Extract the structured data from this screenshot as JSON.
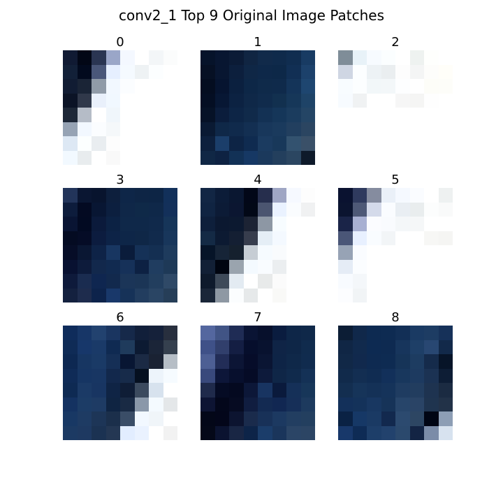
{
  "title": "conv2_1 Top 9 Original Image Patches",
  "panels": [
    {
      "label": "0",
      "grid": [
        [
          "#101a33",
          "#020716",
          "#2a3552",
          "#9aa6c8",
          "#f4f8ff",
          "#ffffff",
          "#f3f6f8",
          "#fbfcfc"
        ],
        [
          "#122038",
          "#020a1e",
          "#4a5779",
          "#e6efff",
          "#f5faff",
          "#eef2f4",
          "#fcfeff",
          "#ffffff"
        ],
        [
          "#111c33",
          "#1a2436",
          "#909ba8",
          "#f2f8ff",
          "#fbfdff",
          "#ffffff",
          "#ffffff",
          "#ffffff"
        ],
        [
          "#0b1326",
          "#30384a",
          "#e9f0fb",
          "#f1f8ff",
          "#ffffff",
          "#ffffff",
          "#ffffff",
          "#ffffff"
        ],
        [
          "#1d2737",
          "#b5bcc7",
          "#ffffff",
          "#f0f6fb",
          "#ffffff",
          "#ffffff",
          "#ffffff",
          "#ffffff"
        ],
        [
          "#96a3b4",
          "#f2f8ff",
          "#fbfdff",
          "#f5f8fa",
          "#ffffff",
          "#ffffff",
          "#ffffff",
          "#ffffff"
        ],
        [
          "#dde8f4",
          "#fcffff",
          "#e9edf0",
          "#fdfdfd",
          "#ffffff",
          "#ffffff",
          "#ffffff",
          "#ffffff"
        ],
        [
          "#f2f9ff",
          "#e8ecee",
          "#ffffff",
          "#f9f9f9",
          "#ffffff",
          "#ffffff",
          "#ffffff",
          "#ffffff"
        ]
      ]
    },
    {
      "label": "1",
      "grid": [
        [
          "#06132a",
          "#081631",
          "#0b1b36",
          "#102542",
          "#112a4a",
          "#0f2a4b",
          "#102d50",
          "#183b63"
        ],
        [
          "#061024",
          "#081631",
          "#0c1f3d",
          "#0f2746",
          "#0e2849",
          "#0d2848",
          "#112f54",
          "#1c416b"
        ],
        [
          "#040d20",
          "#061430",
          "#0b203f",
          "#0d2747",
          "#0f2a4a",
          "#0f2a4b",
          "#143459",
          "#1e4670"
        ],
        [
          "#040e23",
          "#071734",
          "#0c2242",
          "#0f2848",
          "#102b4c",
          "#12304f",
          "#163759",
          "#1e4367"
        ],
        [
          "#061227",
          "#0b1d3c",
          "#0d2546",
          "#102a4a",
          "#133154",
          "#153659",
          "#1b3c5e",
          "#244565"
        ],
        [
          "#0a1a33",
          "#0f2848",
          "#102a4c",
          "#132f52",
          "#18375b",
          "#1a3a5d",
          "#223f5f",
          "#2b4561"
        ],
        [
          "#0d203d",
          "#1b3e6a",
          "#0d2445",
          "#0f2b50",
          "#1b3b60",
          "#18385a",
          "#33526f",
          "#3a5068"
        ],
        [
          "#102745",
          "#0e2242",
          "#123156",
          "#163864",
          "#1b395c",
          "#233f5d",
          "#2b4661",
          "#0e1a2a"
        ]
      ]
    },
    {
      "label": "2",
      "grid": [
        [
          "#7f8d98",
          "#e8f2f8",
          "#f7fbff",
          "#fbfeff",
          "#ffffff",
          "#eef2f0",
          "#fefffd",
          "#ffffff"
        ],
        [
          "#cfd6e3",
          "#fcfeff",
          "#edf2f5",
          "#eaeef0",
          "#fdfdfd",
          "#f4f5f5",
          "#fdfdfb",
          "#fffef9"
        ],
        [
          "#f8fcff",
          "#fcfeff",
          "#f2f7f9",
          "#f3f7f9",
          "#fdfeff",
          "#ffffff",
          "#fdfdf8",
          "#fdfdf9"
        ],
        [
          "#f7fbff",
          "#f0f2f3",
          "#ffffff",
          "#ffffff",
          "#f6f6f6",
          "#f5f5f4",
          "#fefefe",
          "#ffffff"
        ],
        [
          "#ffffff",
          "#ffffff",
          "#ffffff",
          "#ffffff",
          "#ffffff",
          "#ffffff",
          "#ffffff",
          "#ffffff"
        ],
        [
          "#ffffff",
          "#ffffff",
          "#ffffff",
          "#ffffff",
          "#ffffff",
          "#ffffff",
          "#ffffff",
          "#ffffff"
        ],
        [
          "#ffffff",
          "#ffffff",
          "#ffffff",
          "#ffffff",
          "#ffffff",
          "#ffffff",
          "#ffffff",
          "#ffffff"
        ],
        [
          "#ffffff",
          "#ffffff",
          "#ffffff",
          "#ffffff",
          "#ffffff",
          "#ffffff",
          "#ffffff",
          "#ffffff"
        ]
      ]
    },
    {
      "label": "3",
      "grid": [
        [
          "#22345a",
          "#0a1632",
          "#08142e",
          "#0d1f3d",
          "#0e2648",
          "#0e2545",
          "#0d2545",
          "#12305a"
        ],
        [
          "#0d1c3c",
          "#030a22",
          "#081633",
          "#0c1f3f",
          "#0f2748",
          "#0f2948",
          "#0f2849",
          "#13305a"
        ],
        [
          "#091433",
          "#020a22",
          "#0b1a3b",
          "#0c2244",
          "#0f2849",
          "#0f2849",
          "#10294b",
          "#163559"
        ],
        [
          "#040b22",
          "#050c26",
          "#0c1c3f",
          "#0d2347",
          "#0e2648",
          "#0f2747",
          "#112a4c",
          "#18365b"
        ],
        [
          "#060d27",
          "#0a1733",
          "#0e2347",
          "#183661",
          "#0a1c3b",
          "#153157",
          "#142f52",
          "#1e3b5d"
        ],
        [
          "#081131",
          "#0d1b3b",
          "#12284c",
          "#112a50",
          "#163159",
          "#0d2143",
          "#203d60",
          "#1e3957"
        ],
        [
          "#0e1a3b",
          "#1a2c50",
          "#0f2650",
          "#12294d",
          "#1b3558",
          "#1b3556",
          "#223e5e",
          "#2f4967"
        ],
        [
          "#14213f",
          "#1e2c4d",
          "#0d234b",
          "#19386a",
          "#163258",
          "#223d5f",
          "#2a4564",
          "#263e58"
        ]
      ]
    },
    {
      "label": "4",
      "grid": [
        [
          "#122644",
          "#0c1c38",
          "#0a1731",
          "#020718",
          "#262e4d",
          "#9fa6c4",
          "#f6f9ff",
          "#fdfdfd"
        ],
        [
          "#102442",
          "#0c1b36",
          "#0b1631",
          "#020817",
          "#4b5570",
          "#eaf2ff",
          "#fafcfe",
          "#f0f1f2"
        ],
        [
          "#0e1f3b",
          "#0b1830",
          "#0c1930",
          "#1c2334",
          "#8d97a4",
          "#f7fcff",
          "#ffffff",
          "#ffffff"
        ],
        [
          "#142a45",
          "#0c1a32",
          "#141f33",
          "#373d4d",
          "#e5eef6",
          "#f4f9ff",
          "#ffffff",
          "#ffffff"
        ],
        [
          "#061428",
          "#162437",
          "#15202e",
          "#c6cdd4",
          "#f6fbff",
          "#f9fbfd",
          "#ffffff",
          "#ffffff"
        ],
        [
          "#122036",
          "#000510",
          "#9aa4ae",
          "#f4faff",
          "#f9fcff",
          "#ebeef0",
          "#ffffff",
          "#ffffff"
        ],
        [
          "#0e1a2c",
          "#3e4a59",
          "#e3ebf2",
          "#ffffff",
          "#e8eaea",
          "#fbfbfb",
          "#ffffff",
          "#ffffff"
        ],
        [
          "#1a2638",
          "#8e98a3",
          "#fbfdfe",
          "#e6e9ea",
          "#ffffff",
          "#f9f9f7",
          "#ffffff",
          "#ffffff"
        ]
      ]
    },
    {
      "label": "5",
      "grid": [
        [
          "#0a1230",
          "#2f3a5e",
          "#858c9f",
          "#eaf0f8",
          "#f5f9ff",
          "#fafcff",
          "#ffffff",
          "#eef1f1"
        ],
        [
          "#0b1430",
          "#4e5977",
          "#d4daea",
          "#fafcff",
          "#e9eef3",
          "#e9edee",
          "#fcfdfd",
          "#f9fafa"
        ],
        [
          "#1a2448",
          "#a8b0d2",
          "#fbfcff",
          "#f9fbfe",
          "#f4f7f9",
          "#f5f7f8",
          "#ffffff",
          "#ffffff"
        ],
        [
          "#4a5677",
          "#e8f0ff",
          "#f9fcff",
          "#f2f5f7",
          "#ffffff",
          "#ffffff",
          "#f7f7f5",
          "#f5f5f3"
        ],
        [
          "#97a3b5",
          "#fafcff",
          "#ffffff",
          "#ffffff",
          "#ffffff",
          "#ffffff",
          "#ffffff",
          "#ffffff"
        ],
        [
          "#e5ecf6",
          "#fbfdff",
          "#ffffff",
          "#ffffff",
          "#ffffff",
          "#ffffff",
          "#ffffff",
          "#ffffff"
        ],
        [
          "#f8fbff",
          "#f4f7fa",
          "#ffffff",
          "#ffffff",
          "#ffffff",
          "#ffffff",
          "#ffffff",
          "#ffffff"
        ],
        [
          "#fcfdff",
          "#f1f4f6",
          "#ffffff",
          "#ffffff",
          "#ffffff",
          "#ffffff",
          "#ffffff",
          "#ffffff"
        ]
      ]
    },
    {
      "label": "6",
      "grid": [
        [
          "#0f2c5b",
          "#173667",
          "#22426f",
          "#1a3560",
          "#16294a",
          "#111f3a",
          "#15213a",
          "#282f3e"
        ],
        [
          "#0f2b56",
          "#17376a",
          "#1a3a68",
          "#0f2a52",
          "#1f3b5c",
          "#0c1a32",
          "#1b2538",
          "#35404e"
        ],
        [
          "#0d2852",
          "#173662",
          "#1a3a66",
          "#152f56",
          "#081633",
          "#1b2a44",
          "#1a2233",
          "#b6bec6"
        ],
        [
          "#0f2b57",
          "#163563",
          "#183663",
          "#12284c",
          "#172b4a",
          "#051020",
          "#edf4fb",
          "#f6fbff"
        ],
        [
          "#0e2a53",
          "#1b3a66",
          "#183562",
          "#0f2445",
          "#0f1d36",
          "#3b4a5e",
          "#d7e2ee",
          "#ffffff"
        ],
        [
          "#143261",
          "#1c3c66",
          "#1e3b64",
          "#0f2442",
          "#192a44",
          "#8a98a9",
          "#f4faff",
          "#e4e7e9"
        ],
        [
          "#183864",
          "#1e3b63",
          "#1d3557",
          "#1b2f4b",
          "#3a4d67",
          "#f2f8ff",
          "#f0f5f9",
          "#ffffff"
        ],
        [
          "#1c3a63",
          "#1e3961",
          "#1b3252",
          "#243753",
          "#e2edff",
          "#eaf2ff",
          "#ffffff",
          "#f2f2f2"
        ]
      ]
    },
    {
      "label": "7",
      "grid": [
        [
          "#54679f",
          "#415485",
          "#1f2c55",
          "#0a1434",
          "#07102c",
          "#0a1c3f",
          "#0e2648",
          "#0f2849"
        ],
        [
          "#3f5188",
          "#313f6c",
          "#141e43",
          "#060e2c",
          "#08122f",
          "#0f2446",
          "#0e2647",
          "#102b4d"
        ],
        [
          "#4d5f94",
          "#222d57",
          "#0c1535",
          "#060c29",
          "#0a1533",
          "#0e2446",
          "#0f2849",
          "#102b4e"
        ],
        [
          "#39497c",
          "#0d1639",
          "#070f2d",
          "#050b26",
          "#0d1a3b",
          "#0f2647",
          "#102a4c",
          "#143156"
        ],
        [
          "#1f2a4b",
          "#050b24",
          "#040920",
          "#0c1738",
          "#183461",
          "#0a1a3c",
          "#153058",
          "#173659"
        ],
        [
          "#0d1433",
          "#03071b",
          "#060b22",
          "#101d40",
          "#132a52",
          "#112752",
          "#162f58",
          "#1d3a5e"
        ],
        [
          "#030718",
          "#03061a",
          "#0c1430",
          "#1a2b4c",
          "#183158",
          "#1c3961",
          "#223e61",
          "#233f5f"
        ],
        [
          "#040818",
          "#0b1330",
          "#192644",
          "#0d2448",
          "#1b3d6a",
          "#1a355b",
          "#2b4566",
          "#2c4564"
        ]
      ]
    },
    {
      "label": "8",
      "grid": [
        [
          "#0c1d35",
          "#10284a",
          "#0d2a51",
          "#0e2b52",
          "#122f56",
          "#1a3a63",
          "#1d3c63",
          "#163159"
        ],
        [
          "#102645",
          "#112a4d",
          "#0d2a52",
          "#0e2a51",
          "#17355c",
          "#1e3f67",
          "#284772",
          "#12294a"
        ],
        [
          "#112847",
          "#11294d",
          "#0e2a51",
          "#0e2b52",
          "#163458",
          "#1d3c61",
          "#152b4b",
          "#071428"
        ],
        [
          "#112a4b",
          "#132e52",
          "#102c52",
          "#12305a",
          "#18375d",
          "#1d3a60",
          "#1b3253",
          "#0d1d35"
        ],
        [
          "#132e50",
          "#163459",
          "#143157",
          "#15335a",
          "#1f3c61",
          "#223d5f",
          "#1e3350",
          "#1b2b42"
        ],
        [
          "#13305a",
          "#14325a",
          "#183761",
          "#163358",
          "#27456a",
          "#2a4466",
          "#1f344f",
          "#223248"
        ],
        [
          "#0a2244",
          "#163866",
          "#1a3a64",
          "#12294e",
          "#2c4a6f",
          "#2d4663",
          "#000514",
          "#8d9eb5"
        ],
        [
          "#18386a",
          "#0e2b55",
          "#1d3e69",
          "#22426d",
          "#2b496d",
          "#132444",
          "#7b8ca8",
          "#d7e2ef"
        ]
      ]
    }
  ]
}
